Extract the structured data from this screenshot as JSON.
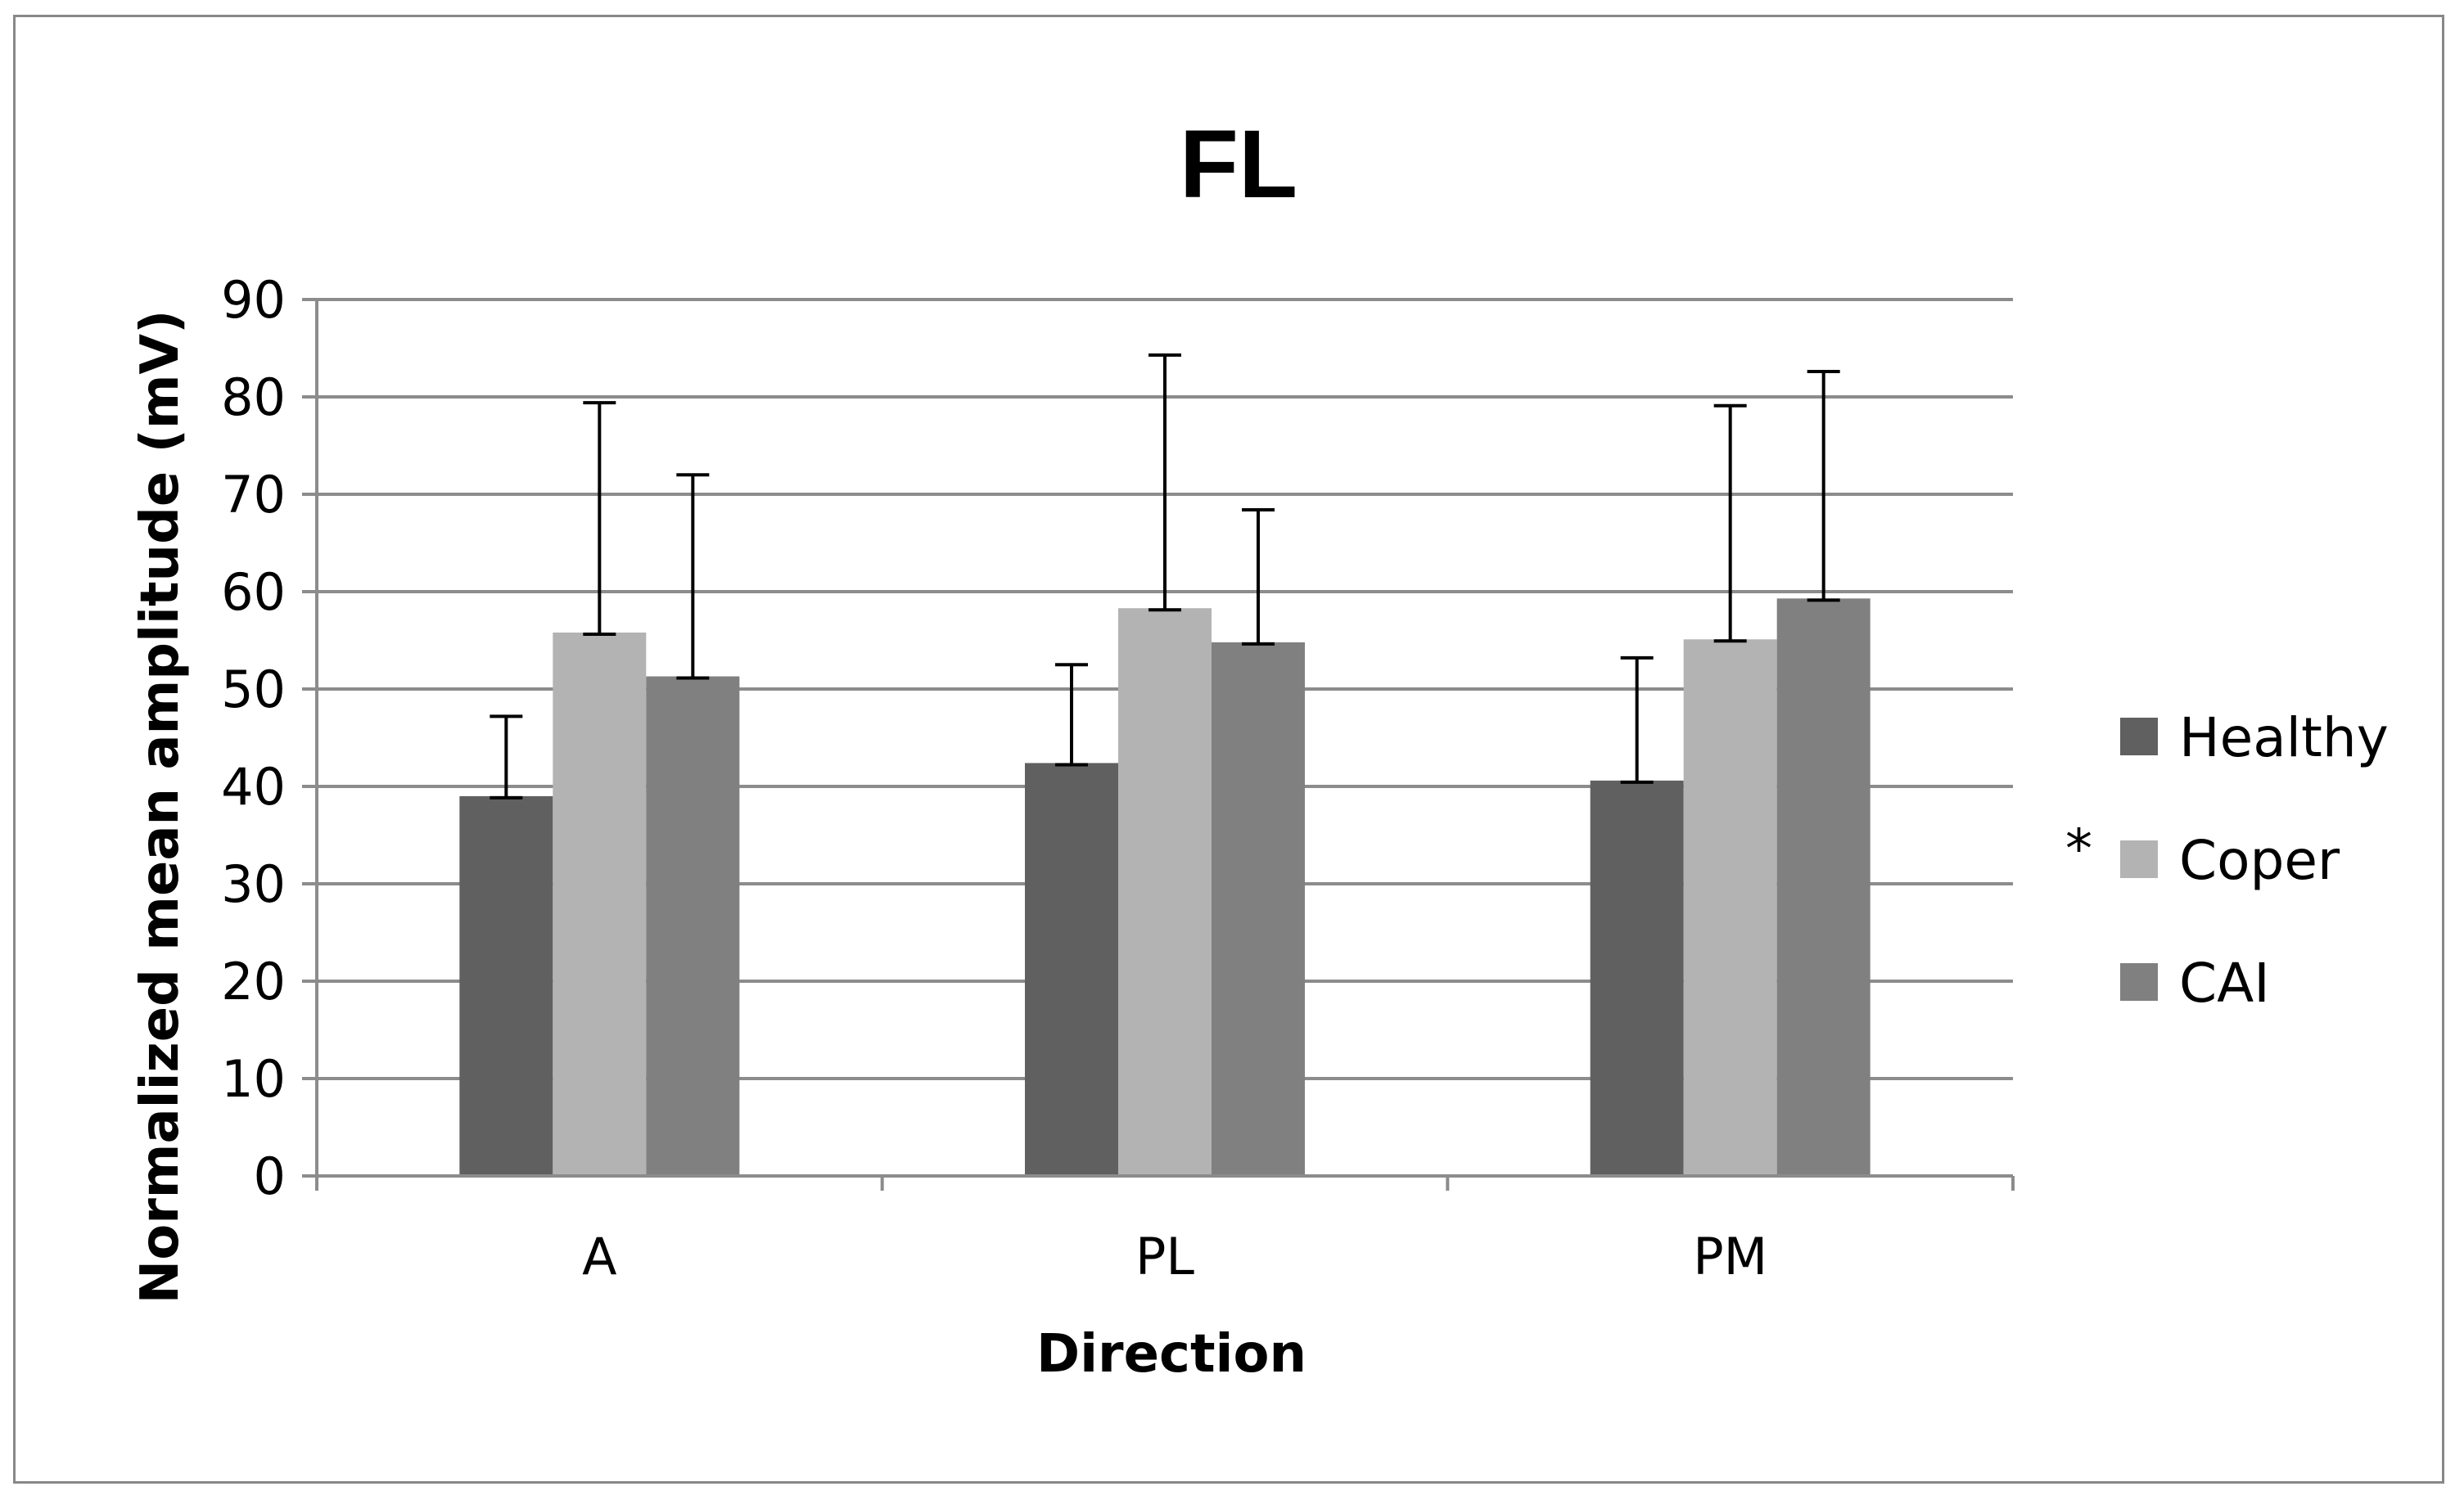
{
  "chart_data": {
    "type": "bar",
    "title": "FL",
    "xlabel": "Direction",
    "ylabel": "Normalized mean amplitude (mV)",
    "ylim": [
      0,
      90
    ],
    "yticks": [
      0,
      10,
      20,
      30,
      40,
      50,
      60,
      70,
      80,
      90
    ],
    "grid": true,
    "categories": [
      "A",
      "PL",
      "PM"
    ],
    "series": [
      {
        "name": "Healthy",
        "color": "#606060",
        "values": [
          39,
          42.4,
          40.6
        ],
        "errors": [
          8.2,
          10.1,
          12.6
        ]
      },
      {
        "name": "Coper",
        "color": "#b3b3b3",
        "values": [
          55.8,
          58.3,
          55.1
        ],
        "errors": [
          23.6,
          26.0,
          24.0
        ]
      },
      {
        "name": "CAI",
        "color": "#808080",
        "values": [
          51.3,
          54.8,
          59.3
        ],
        "errors": [
          20.7,
          13.6,
          23.3
        ]
      }
    ],
    "legend_position": "right",
    "annotation": "*",
    "annotation_series": "Coper"
  }
}
